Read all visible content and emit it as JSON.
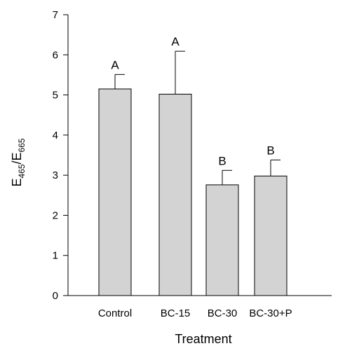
{
  "chart_data": {
    "type": "bar",
    "categories": [
      "Control",
      "BC-15",
      "BC-30",
      "BC-30+P"
    ],
    "values": [
      5.15,
      5.02,
      2.76,
      2.98
    ],
    "error_upper": [
      0.36,
      1.07,
      0.36,
      0.4
    ],
    "letters": [
      "A",
      "A",
      "B",
      "B"
    ],
    "xlabel": "Treatment",
    "ylabel_main": "E",
    "ylabel_sub1": "465",
    "ylabel_slash": "/E",
    "ylabel_sub2": "665",
    "ylim": [
      0,
      7
    ],
    "yticks": [
      0,
      1,
      2,
      3,
      4,
      5,
      6,
      7
    ],
    "grid": false,
    "bar_color": "#d3d3d3"
  }
}
